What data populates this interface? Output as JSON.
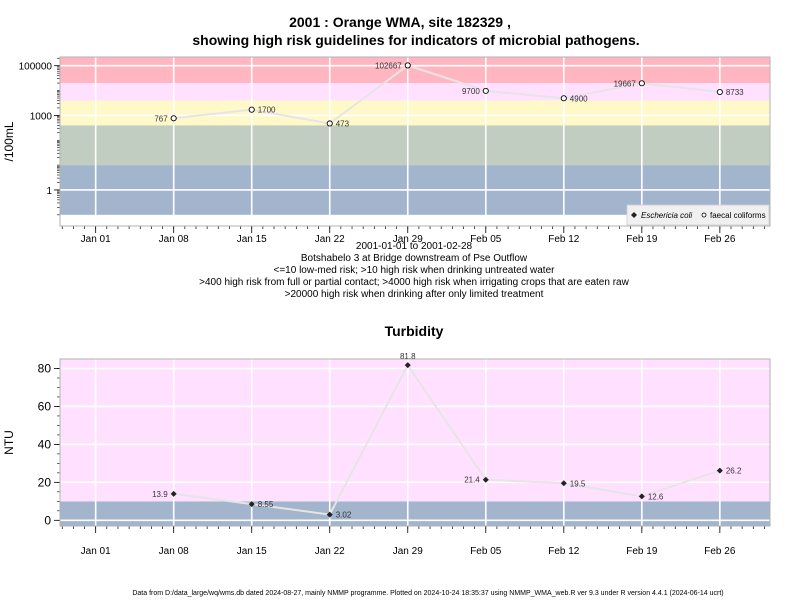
{
  "chart_data": [
    {
      "type": "line",
      "title": "2001 : Orange WMA, site 182329 ,",
      "subtitle": "showing high risk guidelines for indicators of microbial pathogens.",
      "ylabel": "/100mL",
      "y_scale": "log",
      "x_ticks": [
        "Jan 01",
        "Jan 08",
        "Jan 15",
        "Jan 22",
        "Jan 29",
        "Feb 05",
        "Feb 12",
        "Feb 19",
        "Feb 26"
      ],
      "y_ticks": [
        "1",
        "1000",
        "100000"
      ],
      "x": [
        "2001-01-08",
        "2001-01-15",
        "2001-01-22",
        "2001-01-29",
        "2001-02-05",
        "2001-02-12",
        "2001-02-19",
        "2001-02-26"
      ],
      "series": [
        {
          "name": "faecal coliforms",
          "values": [
            767,
            1700,
            473,
            102667,
            9700,
            4900,
            19667,
            8733
          ],
          "labels": [
            "767",
            "1700",
            "473",
            "102667",
            "9700",
            "4900",
            "19667",
            "8733"
          ]
        }
      ],
      "legend_entries": [
        "Eschericia coli",
        "faecal coliforms"
      ],
      "legend_position": "bottom-right",
      "bands": [
        {
          "from": 0.1,
          "to": 10,
          "color": "#a2b5cd"
        },
        {
          "from": 10,
          "to": 400,
          "color": "#c1cdc1"
        },
        {
          "from": 400,
          "to": 4000,
          "color": "#fff8c8"
        },
        {
          "from": 4000,
          "to": 20000,
          "color": "#ffe1ff"
        },
        {
          "from": 20000,
          "to": 300000,
          "color": "#ffb6c1"
        }
      ],
      "notes": [
        "2001-01-01 to 2001-02-28",
        "Botshabelo 3 at Bridge downstream of Pse Outflow",
        "<=10 low-med risk; >10 high risk when drinking untreated water",
        ">400 high risk from full or partial contact; >4000 high risk when irrigating crops that are eaten raw",
        ">20000 high risk when drinking after only limited treatment"
      ],
      "grid": true
    },
    {
      "type": "line",
      "title": "Turbidity",
      "ylabel": "NTU",
      "x_ticks": [
        "Jan 01",
        "Jan 08",
        "Jan 15",
        "Jan 22",
        "Jan 29",
        "Feb 05",
        "Feb 12",
        "Feb 19",
        "Feb 26"
      ],
      "y_ticks": [
        "0",
        "20",
        "40",
        "60",
        "80"
      ],
      "ylim": [
        -3,
        85
      ],
      "x": [
        "2001-01-08",
        "2001-01-15",
        "2001-01-22",
        "2001-01-29",
        "2001-02-05",
        "2001-02-12",
        "2001-02-19",
        "2001-02-26"
      ],
      "series": [
        {
          "values": [
            13.9,
            8.55,
            3.02,
            81.8,
            21.4,
            19.5,
            12.6,
            26.2
          ],
          "labels": [
            "13.9",
            "8.55",
            "3.02",
            "81.8",
            "21.4",
            "19.5",
            "12.6",
            "26.2"
          ]
        }
      ],
      "bands": [
        {
          "from": -3,
          "to": 10,
          "color": "#a2b5cd"
        },
        {
          "from": 10,
          "to": 85,
          "color": "#ffe1ff"
        }
      ],
      "grid": true
    }
  ],
  "footer": "Data from D:/data_large/wq/wms.db dated 2024-08-27, mainly NMMP programme. Plotted on 2024-10-24 18:35:37 using NMMP_WMA_web.R ver 9.3 under R version 4.4.1 (2024-06-14 ucrt)",
  "colors": {
    "line": "#e5e5e5",
    "grid": "#ffffff",
    "frame": "#b3b3b3",
    "point_fill": "#ffffff",
    "ecoli_point": "#222222"
  }
}
